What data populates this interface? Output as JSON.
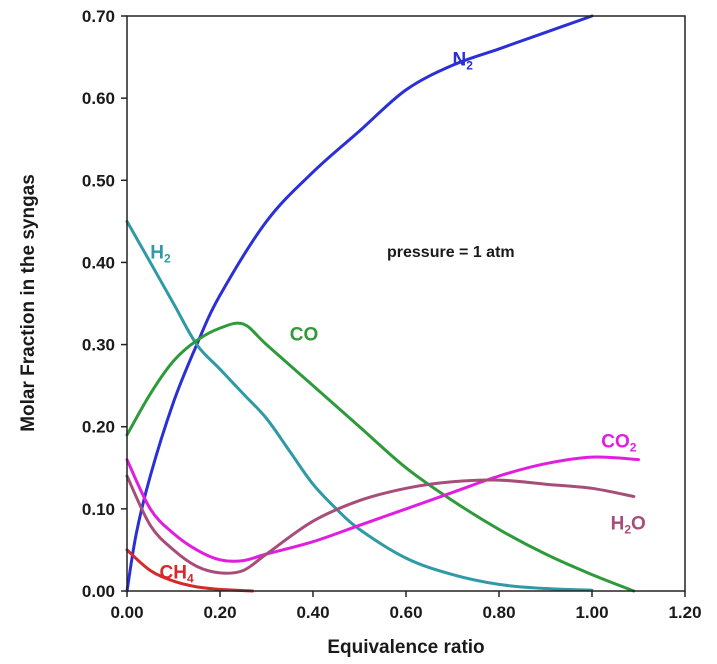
{
  "chart_data": {
    "type": "line",
    "title": "",
    "xlabel": "Equivalence ratio",
    "ylabel": "Molar Fraction in the syngas",
    "xlim": [
      0,
      1.2
    ],
    "ylim": [
      0,
      0.7
    ],
    "grid": false,
    "x_ticks": [
      "0.00",
      "0.20",
      "0.40",
      "0.60",
      "0.80",
      "1.00",
      "1.20"
    ],
    "y_ticks": [
      "0.00",
      "0.10",
      "0.20",
      "0.30",
      "0.40",
      "0.50",
      "0.60",
      "0.70"
    ],
    "annotation": "pressure = 1 atm",
    "series": [
      {
        "key": "n2",
        "label_main": "N",
        "label_sub": "2",
        "color": "#2b2fd6",
        "label_at": [
          0.7,
          0.64
        ],
        "points": [
          [
            0.0,
            0.0
          ],
          [
            0.02,
            0.07
          ],
          [
            0.05,
            0.14
          ],
          [
            0.1,
            0.23
          ],
          [
            0.15,
            0.3
          ],
          [
            0.2,
            0.36
          ],
          [
            0.3,
            0.45
          ],
          [
            0.4,
            0.51
          ],
          [
            0.5,
            0.56
          ],
          [
            0.6,
            0.61
          ],
          [
            0.7,
            0.64
          ],
          [
            0.8,
            0.66
          ],
          [
            0.9,
            0.68
          ],
          [
            1.0,
            0.7
          ]
        ]
      },
      {
        "key": "h2",
        "label_main": "H",
        "label_sub": "2",
        "color": "#2e9aa6",
        "label_at": [
          0.05,
          0.405
        ],
        "points": [
          [
            0.0,
            0.45
          ],
          [
            0.05,
            0.4
          ],
          [
            0.1,
            0.35
          ],
          [
            0.15,
            0.3
          ],
          [
            0.2,
            0.27
          ],
          [
            0.25,
            0.24
          ],
          [
            0.3,
            0.21
          ],
          [
            0.35,
            0.17
          ],
          [
            0.4,
            0.13
          ],
          [
            0.45,
            0.1
          ],
          [
            0.5,
            0.075
          ],
          [
            0.6,
            0.04
          ],
          [
            0.7,
            0.02
          ],
          [
            0.8,
            0.008
          ],
          [
            0.9,
            0.003
          ],
          [
            1.0,
            0.001
          ]
        ]
      },
      {
        "key": "co",
        "label_main": "CO",
        "label_sub": "",
        "color": "#2e9a3a",
        "label_at": [
          0.35,
          0.305
        ],
        "points": [
          [
            0.0,
            0.19
          ],
          [
            0.05,
            0.24
          ],
          [
            0.1,
            0.28
          ],
          [
            0.15,
            0.305
          ],
          [
            0.2,
            0.32
          ],
          [
            0.25,
            0.325
          ],
          [
            0.3,
            0.3
          ],
          [
            0.4,
            0.25
          ],
          [
            0.5,
            0.2
          ],
          [
            0.6,
            0.15
          ],
          [
            0.7,
            0.11
          ],
          [
            0.8,
            0.075
          ],
          [
            0.9,
            0.045
          ],
          [
            1.0,
            0.02
          ],
          [
            1.09,
            0.0
          ]
        ]
      },
      {
        "key": "co2",
        "label_main": "CO",
        "label_sub": "2",
        "color": "#e01ee0",
        "label_at": [
          1.02,
          0.175
        ],
        "points": [
          [
            0.0,
            0.16
          ],
          [
            0.05,
            0.1
          ],
          [
            0.1,
            0.07
          ],
          [
            0.15,
            0.05
          ],
          [
            0.2,
            0.038
          ],
          [
            0.25,
            0.037
          ],
          [
            0.3,
            0.045
          ],
          [
            0.4,
            0.06
          ],
          [
            0.5,
            0.08
          ],
          [
            0.6,
            0.1
          ],
          [
            0.7,
            0.12
          ],
          [
            0.8,
            0.14
          ],
          [
            0.9,
            0.155
          ],
          [
            1.0,
            0.163
          ],
          [
            1.1,
            0.16
          ]
        ]
      },
      {
        "key": "h2o",
        "label_main": "H",
        "label_sub": "2",
        "label_tail": "O",
        "color": "#a84d7a",
        "label_at": [
          1.04,
          0.075
        ],
        "points": [
          [
            0.0,
            0.14
          ],
          [
            0.05,
            0.08
          ],
          [
            0.1,
            0.05
          ],
          [
            0.15,
            0.03
          ],
          [
            0.2,
            0.022
          ],
          [
            0.25,
            0.025
          ],
          [
            0.3,
            0.045
          ],
          [
            0.4,
            0.085
          ],
          [
            0.5,
            0.11
          ],
          [
            0.6,
            0.125
          ],
          [
            0.7,
            0.133
          ],
          [
            0.8,
            0.135
          ],
          [
            0.9,
            0.13
          ],
          [
            1.0,
            0.125
          ],
          [
            1.09,
            0.115
          ]
        ]
      },
      {
        "key": "ch4",
        "label_main": "CH",
        "label_sub": "4",
        "color": "#d42a2a",
        "label_at": [
          0.07,
          0.015
        ],
        "points": [
          [
            0.0,
            0.05
          ],
          [
            0.05,
            0.025
          ],
          [
            0.1,
            0.012
          ],
          [
            0.15,
            0.005
          ],
          [
            0.2,
            0.002
          ],
          [
            0.25,
            0.0005
          ],
          [
            0.27,
            0.0
          ]
        ]
      }
    ]
  }
}
